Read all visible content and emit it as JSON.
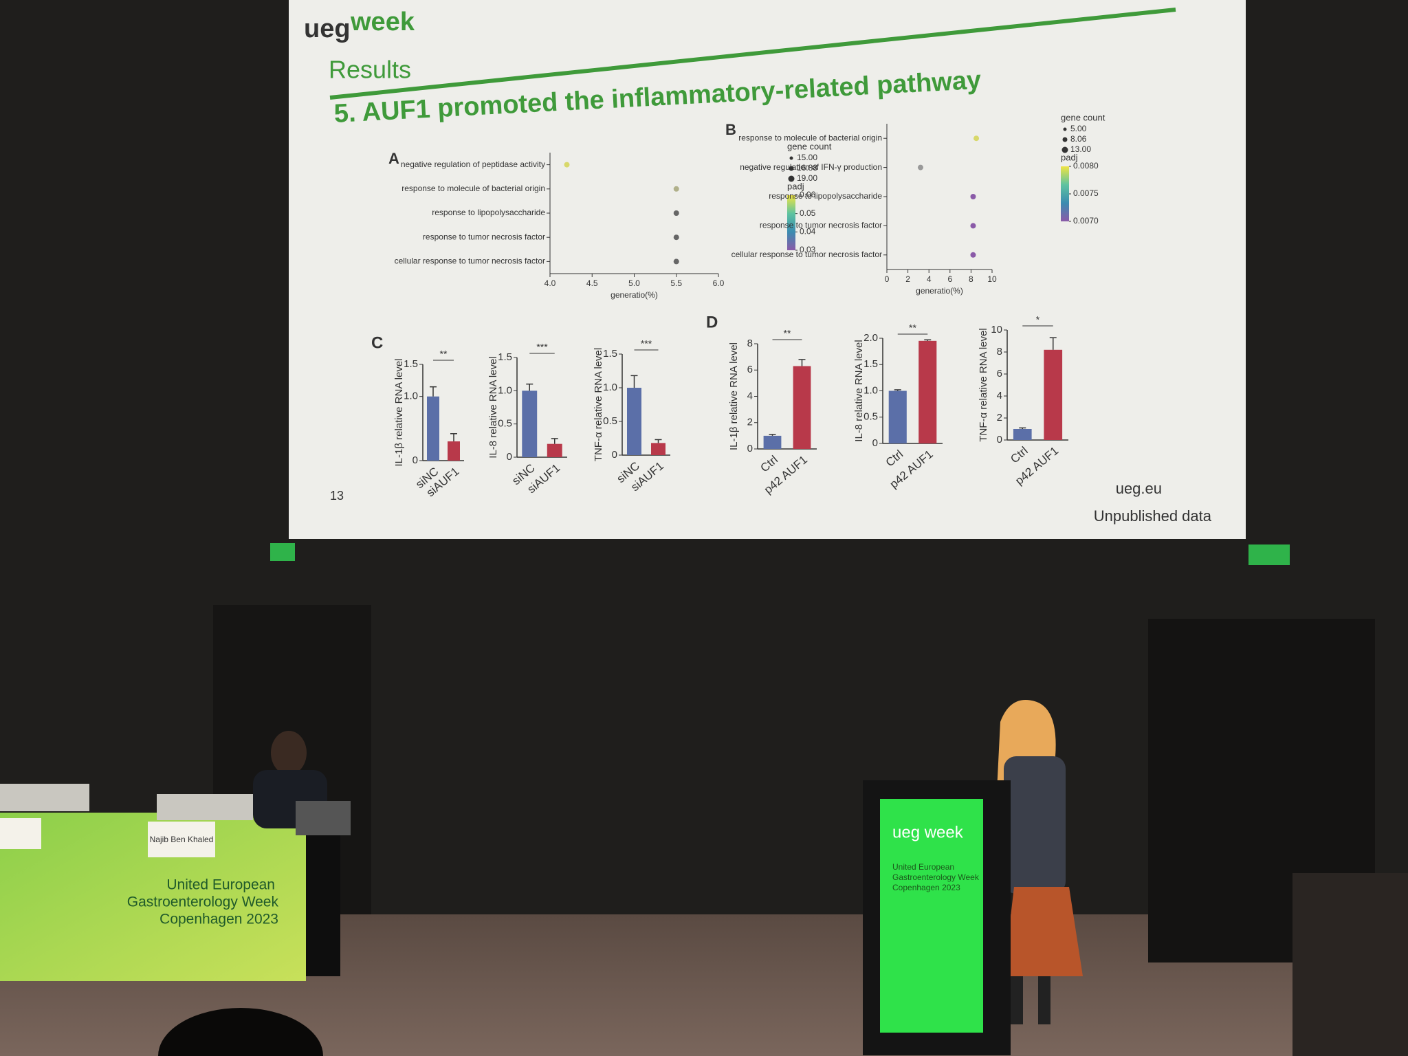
{
  "slide": {
    "logo_ueg": "ueg",
    "logo_week": "week",
    "section": "Results",
    "title": "5. AUF1 promoted the inflammatory-related pathway",
    "page_number": "13",
    "footer_url": "ueg.eu",
    "note": "Unpublished data"
  },
  "chart_data": [
    {
      "type": "dot",
      "panel": "A",
      "categories": [
        "negative regulation of peptidase activity",
        "response to molecule of bacterial origin",
        "response to lipopolysaccharide",
        "response to tumor necrosis factor",
        "cellular response to tumor necrosis factor"
      ],
      "values": [
        4.2,
        5.5,
        5.5,
        5.5,
        5.5
      ],
      "colors": [
        "#d8d86a",
        "#b0b08a",
        "#666666",
        "#666666",
        "#666666"
      ],
      "xlim": [
        4.0,
        6.0
      ],
      "xticks": [
        {
          "value": 4,
          "label": "4.0"
        },
        4.5,
        {
          "value": 5,
          "label": "5.0"
        },
        5.5,
        {
          "value": 6,
          "label": "6.0"
        }
      ],
      "xlabel": "generatio(%)",
      "size_title": "gene count",
      "size_legend": [
        {
          "value": 15,
          "label": "15.00"
        },
        {
          "value": 16.88,
          "label": "16.88"
        },
        {
          "value": 19,
          "label": "19.00"
        }
      ],
      "color_title": "padj",
      "colorbar": [
        {
          "value": 0.06,
          "label": "0.06"
        },
        {
          "value": 0.05,
          "label": "0.05"
        },
        {
          "value": 0.04,
          "label": "0.04"
        },
        {
          "value": 0.03,
          "label": "0.03"
        }
      ],
      "colorbar_colors": [
        "#f0e442",
        "#5ec3a0",
        "#3b8bb0",
        "#8a5aa8"
      ]
    },
    {
      "type": "dot",
      "panel": "B",
      "categories": [
        "response to molecule of bacterial origin",
        "negative regulation of IFN-γ production",
        "response to lipopolysaccharide",
        "response to tumor necrosis factor",
        "cellular response to tumor necrosis factor"
      ],
      "values": [
        8.5,
        3.2,
        8.2,
        8.2,
        8.2
      ],
      "colors": [
        "#d8d86a",
        "#999999",
        "#8a5aa8",
        "#8a5aa8",
        "#8a5aa8"
      ],
      "xlim": [
        0,
        10
      ],
      "xticks": [
        0,
        2,
        4,
        6,
        8,
        10
      ],
      "xlabel": "generatio(%)",
      "size_title": "gene count",
      "size_legend": [
        {
          "value": 5,
          "label": "5.00"
        },
        {
          "value": 8.06,
          "label": "8.06"
        },
        {
          "value": 13,
          "label": "13.00"
        }
      ],
      "color_title": "padj",
      "colorbar": [
        {
          "value": 0.008,
          "label": "0.0080"
        },
        {
          "value": 0.0075,
          "label": "0.0075"
        },
        {
          "value": 0.007,
          "label": "0.0070"
        }
      ],
      "colorbar_colors": [
        "#f0e442",
        "#5ec3a0",
        "#3b8bb0",
        "#8a5aa8"
      ]
    },
    {
      "type": "bar",
      "panel": "C",
      "ylabel": "IL-1β relative RNA level",
      "categories": [
        "siNC",
        "siAUF1"
      ],
      "values": [
        1.0,
        0.3
      ],
      "errors": [
        0.15,
        0.12
      ],
      "colors": [
        "#5b6fa8",
        "#b8394a"
      ],
      "ylim": [
        0,
        1.5
      ],
      "yticks": [
        0,
        {
          "value": 1,
          "label": "1.0"
        },
        1.5
      ],
      "significance": "**"
    },
    {
      "type": "bar",
      "ylabel": "IL-8 relative RNA level",
      "categories": [
        "siNC",
        "siAUF1"
      ],
      "values": [
        1.0,
        0.2
      ],
      "errors": [
        0.1,
        0.08
      ],
      "colors": [
        "#5b6fa8",
        "#b8394a"
      ],
      "ylim": [
        0,
        1.5
      ],
      "yticks": [
        0,
        0.5,
        {
          "value": 1,
          "label": "1.0"
        },
        1.5
      ],
      "significance": "***"
    },
    {
      "type": "bar",
      "ylabel": "TNF-α relative RNA level",
      "categories": [
        "siNC",
        "siAUF1"
      ],
      "values": [
        1.0,
        0.18
      ],
      "errors": [
        0.18,
        0.05
      ],
      "colors": [
        "#5b6fa8",
        "#b8394a"
      ],
      "ylim": [
        0,
        1.5
      ],
      "yticks": [
        0,
        0.5,
        {
          "value": 1,
          "label": "1.0"
        },
        1.5
      ],
      "significance": "***"
    },
    {
      "type": "bar",
      "panel": "D",
      "ylabel": "IL-1β relative RNA level",
      "categories": [
        "Ctrl",
        "p42 AUF1"
      ],
      "values": [
        1.0,
        6.3
      ],
      "errors": [
        0.1,
        0.5
      ],
      "colors": [
        "#5b6fa8",
        "#b8394a"
      ],
      "ylim": [
        0,
        8
      ],
      "yticks": [
        0,
        2,
        4,
        6,
        8
      ],
      "significance": "**"
    },
    {
      "type": "bar",
      "ylabel": "IL-8 relative RNA level",
      "categories": [
        "Ctrl",
        "p42 AUF1"
      ],
      "values": [
        1.0,
        1.95
      ],
      "errors": [
        0.02,
        0.02
      ],
      "colors": [
        "#5b6fa8",
        "#b8394a"
      ],
      "ylim": [
        0,
        2
      ],
      "yticks": [
        0,
        0.5,
        {
          "value": 1,
          "label": "1.0"
        },
        1.5,
        {
          "value": 2,
          "label": "2.0"
        }
      ],
      "significance": "**"
    },
    {
      "type": "bar",
      "ylabel": "TNF-α relative RNA level",
      "categories": [
        "Ctrl",
        "p42 AUF1"
      ],
      "values": [
        1.0,
        8.2
      ],
      "errors": [
        0.1,
        1.1
      ],
      "colors": [
        "#5b6fa8",
        "#b8394a"
      ],
      "ylim": [
        0,
        10
      ],
      "yticks": [
        0,
        2,
        4,
        6,
        8,
        10
      ],
      "significance": "*"
    }
  ],
  "stage": {
    "nameplate": "Najib Ben Khaled",
    "banner": [
      "United European",
      "Gastroenterology Week",
      "Copenhagen 2023"
    ],
    "podium_logo": "ueg week",
    "podium_text": [
      "United European",
      "Gastroenterology Week",
      "Copenhagen 2023"
    ]
  }
}
